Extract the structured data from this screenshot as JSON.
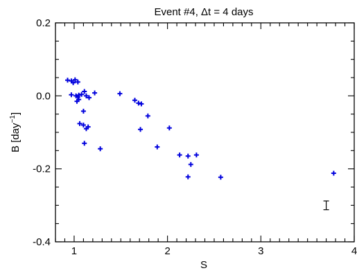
{
  "chart_data": {
    "type": "scatter",
    "title": "Event #4, Δt = 4 days",
    "xlabel": "S",
    "ylabel": "B [day",
    "ylabel_superscript": "−1",
    "ylabel_suffix": "]",
    "xlim": [
      0.8,
      4.0
    ],
    "ylim": [
      -0.4,
      0.2
    ],
    "xticks": [
      1,
      2,
      3,
      4
    ],
    "xtick_labels": [
      "1",
      "2",
      "3",
      "4"
    ],
    "yticks": [
      -0.4,
      -0.2,
      0.0,
      0.2
    ],
    "ytick_labels": [
      "-0.4",
      "-0.2",
      "0.0",
      "0.2"
    ],
    "x_minor_step": 0.1,
    "y_minor_step": 0.05,
    "grid": false,
    "marker": "plus",
    "colors": {
      "points": "#0000dd",
      "axes": "#000000",
      "error_bar": "#000000"
    },
    "points": [
      {
        "x": 0.93,
        "y": 0.043
      },
      {
        "x": 0.97,
        "y": 0.041
      },
      {
        "x": 0.99,
        "y": 0.036
      },
      {
        "x": 1.01,
        "y": 0.044
      },
      {
        "x": 1.04,
        "y": 0.038
      },
      {
        "x": 0.97,
        "y": 0.003
      },
      {
        "x": 1.02,
        "y": 0.0
      },
      {
        "x": 1.04,
        "y": -0.003
      },
      {
        "x": 1.05,
        "y": 0.002
      },
      {
        "x": 1.08,
        "y": 0.004
      },
      {
        "x": 1.11,
        "y": 0.012
      },
      {
        "x": 1.13,
        "y": 0.0
      },
      {
        "x": 1.16,
        "y": -0.005
      },
      {
        "x": 1.22,
        "y": 0.008
      },
      {
        "x": 1.03,
        "y": -0.015
      },
      {
        "x": 1.05,
        "y": -0.01
      },
      {
        "x": 1.1,
        "y": -0.042
      },
      {
        "x": 1.06,
        "y": -0.076
      },
      {
        "x": 1.1,
        "y": -0.08
      },
      {
        "x": 1.13,
        "y": -0.09
      },
      {
        "x": 1.15,
        "y": -0.085
      },
      {
        "x": 1.11,
        "y": -0.13
      },
      {
        "x": 1.28,
        "y": -0.145
      },
      {
        "x": 1.49,
        "y": 0.006
      },
      {
        "x": 1.65,
        "y": -0.012
      },
      {
        "x": 1.69,
        "y": -0.02
      },
      {
        "x": 1.72,
        "y": -0.022
      },
      {
        "x": 1.71,
        "y": -0.092
      },
      {
        "x": 1.79,
        "y": -0.055
      },
      {
        "x": 1.89,
        "y": -0.14
      },
      {
        "x": 2.02,
        "y": -0.088
      },
      {
        "x": 2.13,
        "y": -0.162
      },
      {
        "x": 2.22,
        "y": -0.165
      },
      {
        "x": 2.31,
        "y": -0.162
      },
      {
        "x": 2.25,
        "y": -0.188
      },
      {
        "x": 2.22,
        "y": -0.222
      },
      {
        "x": 2.57,
        "y": -0.223
      },
      {
        "x": 3.78,
        "y": -0.212
      }
    ],
    "error_bar": {
      "x": 3.7,
      "y_low": -0.312,
      "y_high": -0.288
    }
  }
}
